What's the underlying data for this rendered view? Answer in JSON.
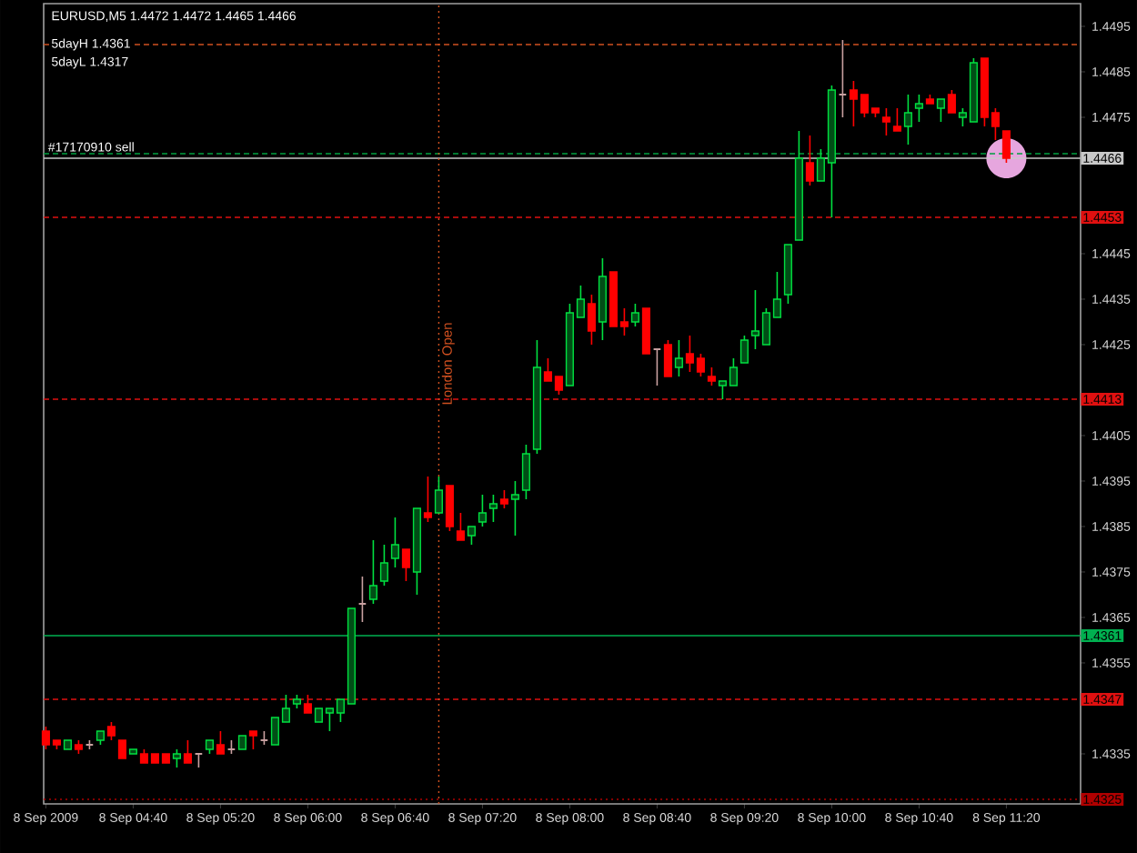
{
  "chart_data": {
    "type": "candlestick",
    "title": "EURUSD,M5  1.4472 1.4472 1.4465 1.4466",
    "x": [
      "2009-09-08T04:00",
      "2009-09-08T04:05",
      "2009-09-08T04:10",
      "2009-09-08T04:15",
      "2009-09-08T04:20",
      "2009-09-08T04:25",
      "2009-09-08T04:30",
      "2009-09-08T04:35",
      "2009-09-08T04:40",
      "2009-09-08T04:45",
      "2009-09-08T04:50",
      "2009-09-08T04:55",
      "2009-09-08T05:00",
      "2009-09-08T05:05",
      "2009-09-08T05:10",
      "2009-09-08T05:15",
      "2009-09-08T05:20",
      "2009-09-08T05:25",
      "2009-09-08T05:30",
      "2009-09-08T05:35",
      "2009-09-08T05:40",
      "2009-09-08T05:45",
      "2009-09-08T05:50",
      "2009-09-08T05:55",
      "2009-09-08T06:00",
      "2009-09-08T06:05",
      "2009-09-08T06:10",
      "2009-09-08T06:15",
      "2009-09-08T06:20",
      "2009-09-08T06:25",
      "2009-09-08T06:30",
      "2009-09-08T06:35",
      "2009-09-08T06:40",
      "2009-09-08T06:45",
      "2009-09-08T06:50",
      "2009-09-08T06:55",
      "2009-09-08T07:00",
      "2009-09-08T07:05",
      "2009-09-08T07:10",
      "2009-09-08T07:15",
      "2009-09-08T07:20",
      "2009-09-08T07:25",
      "2009-09-08T07:30",
      "2009-09-08T07:35",
      "2009-09-08T07:40",
      "2009-09-08T07:45",
      "2009-09-08T07:50",
      "2009-09-08T07:55",
      "2009-09-08T08:00",
      "2009-09-08T08:05",
      "2009-09-08T08:10",
      "2009-09-08T08:15",
      "2009-09-08T08:20",
      "2009-09-08T08:25",
      "2009-09-08T08:30",
      "2009-09-08T08:35",
      "2009-09-08T08:40",
      "2009-09-08T08:45",
      "2009-09-08T08:50",
      "2009-09-08T08:55",
      "2009-09-08T09:00",
      "2009-09-08T09:05",
      "2009-09-08T09:10",
      "2009-09-08T09:15",
      "2009-09-08T09:20",
      "2009-09-08T09:25",
      "2009-09-08T09:30",
      "2009-09-08T09:35",
      "2009-09-08T09:40",
      "2009-09-08T09:45",
      "2009-09-08T09:50",
      "2009-09-08T09:55",
      "2009-09-08T10:00",
      "2009-09-08T10:05",
      "2009-09-08T10:10",
      "2009-09-08T10:15",
      "2009-09-08T10:20",
      "2009-09-08T10:25",
      "2009-09-08T10:30",
      "2009-09-08T10:35",
      "2009-09-08T10:40",
      "2009-09-08T10:45",
      "2009-09-08T10:50",
      "2009-09-08T10:55",
      "2009-09-08T11:00",
      "2009-09-08T11:05",
      "2009-09-08T11:10",
      "2009-09-08T11:15",
      "2009-09-08T11:20"
    ],
    "ohlc": [
      [
        1.434,
        1.4341,
        1.4336,
        1.4337
      ],
      [
        1.4338,
        1.4338,
        1.4336,
        1.4337
      ],
      [
        1.4336,
        1.4338,
        1.4336,
        1.4338
      ],
      [
        1.4337,
        1.4338,
        1.4335,
        1.4336
      ],
      [
        1.4337,
        1.4338,
        1.4336,
        1.4337
      ],
      [
        1.4338,
        1.434,
        1.4337,
        1.434
      ],
      [
        1.4341,
        1.4342,
        1.4338,
        1.4339
      ],
      [
        1.4338,
        1.4338,
        1.4334,
        1.4334
      ],
      [
        1.4335,
        1.4336,
        1.4335,
        1.4336
      ],
      [
        1.4335,
        1.4336,
        1.4333,
        1.4333
      ],
      [
        1.4335,
        1.4335,
        1.4333,
        1.4333
      ],
      [
        1.4335,
        1.4335,
        1.4333,
        1.4333
      ],
      [
        1.4334,
        1.4336,
        1.4332,
        1.4335
      ],
      [
        1.4335,
        1.4338,
        1.4333,
        1.4333
      ],
      [
        1.4335,
        1.4335,
        1.4332,
        1.4335
      ],
      [
        1.4336,
        1.4338,
        1.4335,
        1.4338
      ],
      [
        1.4337,
        1.434,
        1.4335,
        1.4335
      ],
      [
        1.4336,
        1.4338,
        1.4335,
        1.4336
      ],
      [
        1.4336,
        1.4339,
        1.4336,
        1.4339
      ],
      [
        1.434,
        1.434,
        1.4336,
        1.4339
      ],
      [
        1.4338,
        1.434,
        1.4337,
        1.4338
      ],
      [
        1.4337,
        1.4343,
        1.4337,
        1.4343
      ],
      [
        1.4342,
        1.4348,
        1.4342,
        1.4345
      ],
      [
        1.4346,
        1.4348,
        1.4345,
        1.4347
      ],
      [
        1.4346,
        1.4348,
        1.4344,
        1.4344
      ],
      [
        1.4342,
        1.4345,
        1.4342,
        1.4345
      ],
      [
        1.4344,
        1.4345,
        1.434,
        1.4345
      ],
      [
        1.4344,
        1.4347,
        1.4342,
        1.4347
      ],
      [
        1.4346,
        1.4367,
        1.4346,
        1.4367
      ],
      [
        1.4368,
        1.4374,
        1.4364,
        1.4368
      ],
      [
        1.4369,
        1.4382,
        1.4368,
        1.4372
      ],
      [
        1.4373,
        1.4381,
        1.4372,
        1.4377
      ],
      [
        1.4378,
        1.4387,
        1.4376,
        1.4381
      ],
      [
        1.438,
        1.438,
        1.4373,
        1.4376
      ],
      [
        1.4375,
        1.4389,
        1.437,
        1.4389
      ],
      [
        1.4388,
        1.4396,
        1.4386,
        1.4387
      ],
      [
        1.4388,
        1.4396,
        1.4388,
        1.4393
      ],
      [
        1.4394,
        1.4394,
        1.4384,
        1.4385
      ],
      [
        1.4384,
        1.4388,
        1.4382,
        1.4382
      ],
      [
        1.4383,
        1.4385,
        1.4381,
        1.4385
      ],
      [
        1.4386,
        1.4392,
        1.4385,
        1.4388
      ],
      [
        1.4389,
        1.4392,
        1.4386,
        1.439
      ],
      [
        1.4391,
        1.4393,
        1.4389,
        1.439
      ],
      [
        1.4391,
        1.4395,
        1.4383,
        1.4392
      ],
      [
        1.4393,
        1.4403,
        1.4391,
        1.4401
      ],
      [
        1.4402,
        1.4426,
        1.4401,
        1.442
      ],
      [
        1.4419,
        1.4422,
        1.4417,
        1.4417
      ],
      [
        1.4418,
        1.4418,
        1.4414,
        1.4415
      ],
      [
        1.4416,
        1.4434,
        1.4416,
        1.4432
      ],
      [
        1.4431,
        1.4438,
        1.4431,
        1.4435
      ],
      [
        1.4434,
        1.4436,
        1.4425,
        1.4428
      ],
      [
        1.443,
        1.4444,
        1.4426,
        1.444
      ],
      [
        1.4441,
        1.4441,
        1.4429,
        1.4429
      ],
      [
        1.443,
        1.4433,
        1.4427,
        1.4429
      ],
      [
        1.443,
        1.4434,
        1.4429,
        1.4432
      ],
      [
        1.4433,
        1.4433,
        1.4423,
        1.4423
      ],
      [
        1.4424,
        1.4424,
        1.4416,
        1.4424
      ],
      [
        1.4425,
        1.4426,
        1.4418,
        1.4418
      ],
      [
        1.442,
        1.4426,
        1.4418,
        1.4422
      ],
      [
        1.4423,
        1.4427,
        1.4419,
        1.4421
      ],
      [
        1.4422,
        1.4423,
        1.4418,
        1.4419
      ],
      [
        1.4418,
        1.442,
        1.4416,
        1.4417
      ],
      [
        1.4416,
        1.4417,
        1.4413,
        1.4417
      ],
      [
        1.4416,
        1.4422,
        1.4416,
        1.442
      ],
      [
        1.4421,
        1.4427,
        1.4421,
        1.4426
      ],
      [
        1.4427,
        1.4437,
        1.4424,
        1.4428
      ],
      [
        1.4425,
        1.4433,
        1.4425,
        1.4432
      ],
      [
        1.4431,
        1.4441,
        1.4431,
        1.4435
      ],
      [
        1.4436,
        1.4447,
        1.4434,
        1.4447
      ],
      [
        1.4448,
        1.4472,
        1.4448,
        1.4466
      ],
      [
        1.4465,
        1.4471,
        1.446,
        1.4461
      ],
      [
        1.4461,
        1.4468,
        1.4461,
        1.4466
      ],
      [
        1.4465,
        1.4482,
        1.4453,
        1.4481
      ],
      [
        1.448,
        1.4492,
        1.4475,
        1.448
      ],
      [
        1.4481,
        1.4483,
        1.4473,
        1.4479
      ],
      [
        1.448,
        1.448,
        1.4475,
        1.4476
      ],
      [
        1.4477,
        1.4477,
        1.4475,
        1.4476
      ],
      [
        1.4475,
        1.4477,
        1.4471,
        1.4474
      ],
      [
        1.4473,
        1.4477,
        1.4472,
        1.4472
      ],
      [
        1.4473,
        1.448,
        1.4469,
        1.4476
      ],
      [
        1.4477,
        1.448,
        1.4474,
        1.4478
      ],
      [
        1.4479,
        1.448,
        1.4478,
        1.4478
      ],
      [
        1.4477,
        1.4479,
        1.4474,
        1.4479
      ],
      [
        1.448,
        1.4481,
        1.4476,
        1.4476
      ],
      [
        1.4475,
        1.4477,
        1.4473,
        1.4476
      ],
      [
        1.4474,
        1.4488,
        1.4474,
        1.4487
      ],
      [
        1.4488,
        1.4488,
        1.4473,
        1.4475
      ],
      [
        1.4476,
        1.4477,
        1.447,
        1.4473
      ],
      [
        1.4472,
        1.4472,
        1.4465,
        1.4466
      ]
    ],
    "colors": [
      "#ff0000",
      "#ff0000",
      "#00e040",
      "#ff0000",
      "#c8a0a0",
      "#00e040",
      "#ff0000",
      "#ff0000",
      "#00e040",
      "#ff0000",
      "#ff0000",
      "#ff0000",
      "#00e040",
      "#ff0000",
      "#c8a0a0",
      "#00e040",
      "#ff0000",
      "#c8a0a0",
      "#00e040",
      "#ff0000",
      "#c8a0a0",
      "#00e040",
      "#00e040",
      "#00e040",
      "#ff0000",
      "#00e040",
      "#00e040",
      "#00e040",
      "#00e040",
      "#c8a0a0",
      "#00e040",
      "#00e040",
      "#00e040",
      "#ff0000",
      "#00e040",
      "#ff0000",
      "#00e040",
      "#ff0000",
      "#ff0000",
      "#00e040",
      "#00e040",
      "#00e040",
      "#ff0000",
      "#00e040",
      "#00e040",
      "#00e040",
      "#ff0000",
      "#ff0000",
      "#00e040",
      "#00e040",
      "#ff0000",
      "#00e040",
      "#ff0000",
      "#ff0000",
      "#00e040",
      "#ff0000",
      "#c8a0a0",
      "#ff0000",
      "#00e040",
      "#ff0000",
      "#ff0000",
      "#ff0000",
      "#00e040",
      "#00e040",
      "#00e040",
      "#00e040",
      "#00e040",
      "#00e040",
      "#00e040",
      "#00e040",
      "#ff0000",
      "#00e040",
      "#00e040",
      "#c8a0a0",
      "#ff0000",
      "#ff0000",
      "#ff0000",
      "#ff0000",
      "#ff0000",
      "#00e040",
      "#00e040",
      "#ff0000",
      "#00e040",
      "#ff0000",
      "#00e040",
      "#00e040",
      "#ff0000",
      "#ff0000",
      "#ff0000"
    ],
    "xlim": [
      "2009-09-08T03:59",
      "2009-09-08T11:54"
    ],
    "xticks": [
      {
        "value": "2009-09-08T04:00",
        "label": "8 Sep 2009"
      },
      {
        "value": "2009-09-08T04:40",
        "label": "8 Sep 04:40"
      },
      {
        "value": "2009-09-08T05:20",
        "label": "8 Sep 05:20"
      },
      {
        "value": "2009-09-08T06:00",
        "label": "8 Sep 06:00"
      },
      {
        "value": "2009-09-08T06:40",
        "label": "8 Sep 06:40"
      },
      {
        "value": "2009-09-08T07:20",
        "label": "8 Sep 07:20"
      },
      {
        "value": "2009-09-08T08:00",
        "label": "8 Sep 08:00"
      },
      {
        "value": "2009-09-08T08:40",
        "label": "8 Sep 08:40"
      },
      {
        "value": "2009-09-08T09:20",
        "label": "8 Sep 09:20"
      },
      {
        "value": "2009-09-08T10:00",
        "label": "8 Sep 10:00"
      },
      {
        "value": "2009-09-08T10:40",
        "label": "8 Sep 10:40"
      },
      {
        "value": "2009-09-08T11:20",
        "label": "8 Sep 11:20"
      }
    ],
    "ylim": [
      1.4324,
      1.45
    ],
    "yticks": [
      1.4335,
      1.4355,
      1.4365,
      1.4375,
      1.4385,
      1.4395,
      1.4405,
      1.4425,
      1.4435,
      1.4445,
      1.4475,
      1.4485,
      1.4495
    ],
    "ref_lines": [
      {
        "axis": "y",
        "value": 1.4491,
        "color": "#d05020",
        "line_style": "dashed"
      },
      {
        "axis": "y",
        "value": 1.4467,
        "color": "#00a040",
        "line_style": "dashed"
      },
      {
        "axis": "y",
        "value": 1.4466,
        "label": "1.4466",
        "color": "#c8c8c8",
        "line_style": "solid"
      },
      {
        "axis": "y",
        "value": 1.4453,
        "label": "1.4453",
        "color": "#e01010",
        "line_style": "dashed"
      },
      {
        "axis": "y",
        "value": 1.4413,
        "label": "1.4413",
        "color": "#e01010",
        "line_style": "dashed"
      },
      {
        "axis": "y",
        "value": 1.4361,
        "label": "1.4361",
        "color": "#00b050",
        "line_style": "solid"
      },
      {
        "axis": "y",
        "value": 1.4347,
        "label": "1.4347",
        "color": "#e01010",
        "line_style": "dashed"
      },
      {
        "axis": "y",
        "value": 1.4325,
        "label": "1.4325",
        "color": "#b00000",
        "line_style": "dotted"
      },
      {
        "axis": "x",
        "value": "2009-09-08T07:00",
        "label": "London Open",
        "color": "#d05020",
        "line_style": "dotted"
      }
    ],
    "annotations": [
      "5dayH 1.4361",
      "5dayL 1.4317",
      {
        "text": "#17170910 sell",
        "x": "2009-09-08T04:00",
        "y": 1.4467
      }
    ]
  }
}
